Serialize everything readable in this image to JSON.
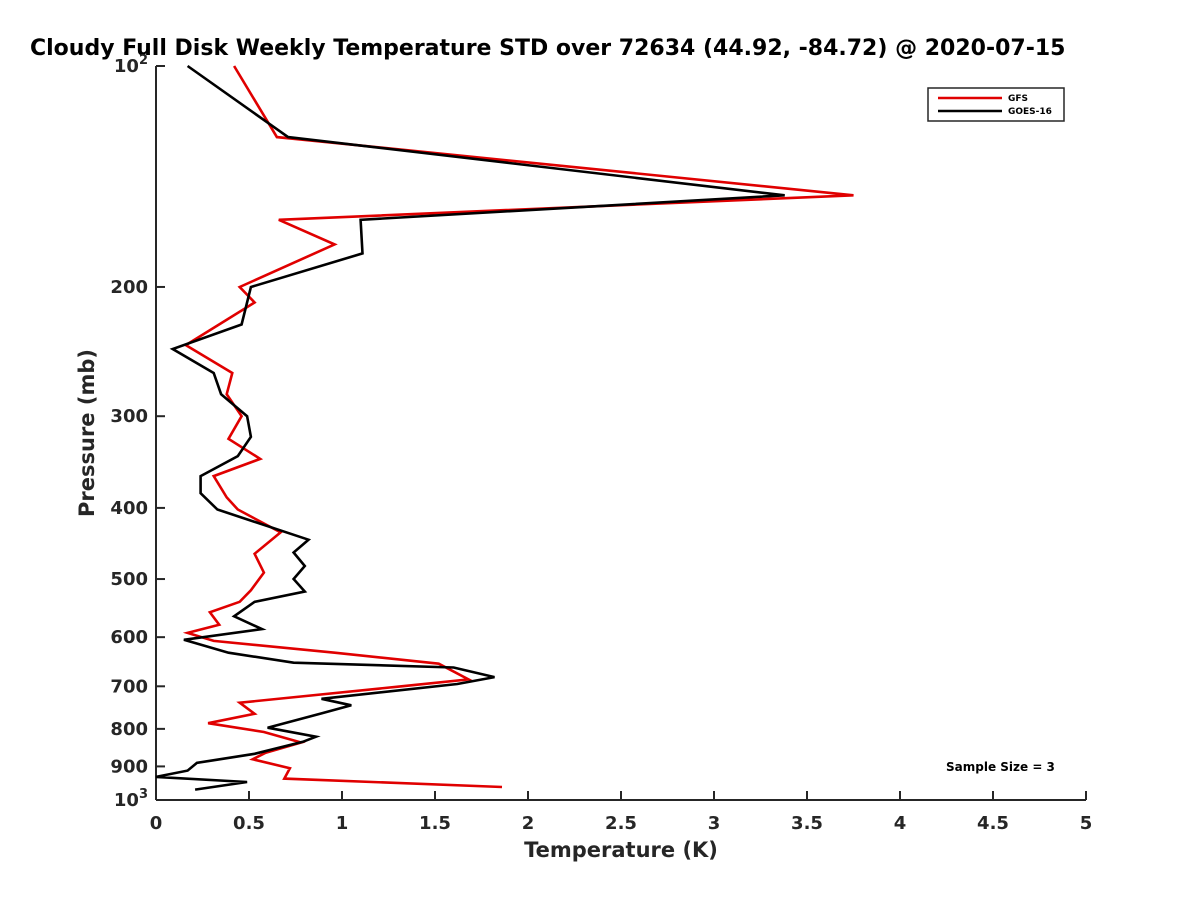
{
  "chart_data": {
    "type": "line",
    "title": "Cloudy Full Disk Weekly Temperature STD over 72634 (44.92, -84.72) @ 2020-07-15",
    "xlabel": "Temperature (K)",
    "ylabel": "Pressure (mb)",
    "xlim": [
      0,
      5
    ],
    "ylim": [
      100,
      1000
    ],
    "y_scale": "log",
    "y_reversed": true,
    "grid": false,
    "legend_position": "top-right",
    "x_ticks": [
      {
        "value": 0,
        "label": "0"
      },
      {
        "value": 0.5,
        "label": "0.5"
      },
      {
        "value": 1,
        "label": "1"
      },
      {
        "value": 1.5,
        "label": "1.5"
      },
      {
        "value": 2,
        "label": "2"
      },
      {
        "value": 2.5,
        "label": "2.5"
      },
      {
        "value": 3,
        "label": "3"
      },
      {
        "value": 3.5,
        "label": "3.5"
      },
      {
        "value": 4,
        "label": "4"
      },
      {
        "value": 4.5,
        "label": "4.5"
      },
      {
        "value": 5,
        "label": "5"
      }
    ],
    "y_ticks": [
      {
        "value": 100,
        "base": "10",
        "exp": "2"
      },
      {
        "value": 200,
        "label": "200"
      },
      {
        "value": 300,
        "label": "300"
      },
      {
        "value": 400,
        "label": "400"
      },
      {
        "value": 500,
        "label": "500"
      },
      {
        "value": 600,
        "label": "600"
      },
      {
        "value": 700,
        "label": "700"
      },
      {
        "value": 800,
        "label": "800"
      },
      {
        "value": 900,
        "label": "900"
      },
      {
        "value": 1000,
        "base": "10",
        "exp": "3"
      }
    ],
    "series": [
      {
        "name": "GFS",
        "color": "#e00000",
        "points": [
          {
            "x": 0.42,
            "y": 100
          },
          {
            "x": 0.65,
            "y": 125
          },
          {
            "x": 3.75,
            "y": 150
          },
          {
            "x": 0.66,
            "y": 162
          },
          {
            "x": 0.96,
            "y": 175
          },
          {
            "x": 0.45,
            "y": 200
          },
          {
            "x": 0.53,
            "y": 210
          },
          {
            "x": 0.16,
            "y": 240
          },
          {
            "x": 0.41,
            "y": 262
          },
          {
            "x": 0.38,
            "y": 280
          },
          {
            "x": 0.46,
            "y": 300
          },
          {
            "x": 0.39,
            "y": 322
          },
          {
            "x": 0.56,
            "y": 343
          },
          {
            "x": 0.31,
            "y": 362
          },
          {
            "x": 0.38,
            "y": 387
          },
          {
            "x": 0.44,
            "y": 402
          },
          {
            "x": 0.67,
            "y": 432
          },
          {
            "x": 0.53,
            "y": 462
          },
          {
            "x": 0.58,
            "y": 490
          },
          {
            "x": 0.51,
            "y": 518
          },
          {
            "x": 0.45,
            "y": 537
          },
          {
            "x": 0.29,
            "y": 555
          },
          {
            "x": 0.34,
            "y": 577
          },
          {
            "x": 0.17,
            "y": 592
          },
          {
            "x": 0.31,
            "y": 607
          },
          {
            "x": 0.96,
            "y": 630
          },
          {
            "x": 1.52,
            "y": 652
          },
          {
            "x": 1.68,
            "y": 685
          },
          {
            "x": 1.32,
            "y": 700
          },
          {
            "x": 0.45,
            "y": 737
          },
          {
            "x": 0.53,
            "y": 763
          },
          {
            "x": 0.28,
            "y": 786
          },
          {
            "x": 0.58,
            "y": 808
          },
          {
            "x": 0.78,
            "y": 835
          },
          {
            "x": 0.59,
            "y": 862
          },
          {
            "x": 0.52,
            "y": 880
          },
          {
            "x": 0.72,
            "y": 905
          },
          {
            "x": 0.69,
            "y": 935
          },
          {
            "x": 1.86,
            "y": 960
          }
        ]
      },
      {
        "name": "GOES-16",
        "color": "#000000",
        "points": [
          {
            "x": 0.17,
            "y": 100
          },
          {
            "x": 0.71,
            "y": 125
          },
          {
            "x": 3.38,
            "y": 150
          },
          {
            "x": 1.1,
            "y": 162
          },
          {
            "x": 1.11,
            "y": 180
          },
          {
            "x": 0.51,
            "y": 200
          },
          {
            "x": 0.46,
            "y": 225
          },
          {
            "x": 0.09,
            "y": 243
          },
          {
            "x": 0.31,
            "y": 262
          },
          {
            "x": 0.35,
            "y": 280
          },
          {
            "x": 0.49,
            "y": 300
          },
          {
            "x": 0.51,
            "y": 320
          },
          {
            "x": 0.44,
            "y": 340
          },
          {
            "x": 0.24,
            "y": 362
          },
          {
            "x": 0.24,
            "y": 382
          },
          {
            "x": 0.33,
            "y": 402
          },
          {
            "x": 0.82,
            "y": 442
          },
          {
            "x": 0.74,
            "y": 460
          },
          {
            "x": 0.8,
            "y": 480
          },
          {
            "x": 0.74,
            "y": 500
          },
          {
            "x": 0.8,
            "y": 520
          },
          {
            "x": 0.53,
            "y": 537
          },
          {
            "x": 0.42,
            "y": 562
          },
          {
            "x": 0.57,
            "y": 585
          },
          {
            "x": 0.15,
            "y": 605
          },
          {
            "x": 0.39,
            "y": 630
          },
          {
            "x": 0.74,
            "y": 650
          },
          {
            "x": 1.6,
            "y": 660
          },
          {
            "x": 1.82,
            "y": 680
          },
          {
            "x": 1.62,
            "y": 695
          },
          {
            "x": 0.89,
            "y": 728
          },
          {
            "x": 1.05,
            "y": 743
          },
          {
            "x": 0.89,
            "y": 762
          },
          {
            "x": 0.6,
            "y": 797
          },
          {
            "x": 0.86,
            "y": 820
          },
          {
            "x": 0.79,
            "y": 833
          },
          {
            "x": 0.53,
            "y": 865
          },
          {
            "x": 0.22,
            "y": 890
          },
          {
            "x": 0.17,
            "y": 912
          },
          {
            "x": 0.0,
            "y": 930
          },
          {
            "x": 0.49,
            "y": 945
          },
          {
            "x": 0.21,
            "y": 968
          }
        ]
      }
    ],
    "annotations": [
      {
        "text": "Sample Size = 3",
        "position": "bottom-right"
      }
    ]
  }
}
